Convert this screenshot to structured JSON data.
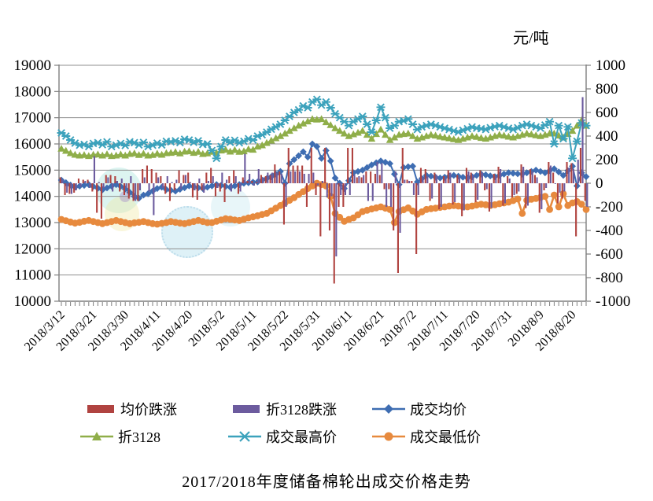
{
  "chart_data": {
    "type": "combo-line-bar",
    "title": "2017/2018年度储备棉轮出成交价格走势",
    "unit_label": "元/吨",
    "grid": "horizontal",
    "legend_position": "bottom",
    "y_left": {
      "min": 10000,
      "max": 19000,
      "ticks": [
        19000,
        18000,
        17000,
        16000,
        15000,
        14000,
        13000,
        12000,
        11000,
        10000
      ]
    },
    "y_right": {
      "min": -1000,
      "max": 1000,
      "ticks": [
        1000,
        800,
        600,
        400,
        200,
        0,
        -200,
        -400,
        -600,
        -800,
        -1000
      ]
    },
    "x_tick_labels": [
      "2018/3/12",
      "2018/3/21",
      "2018/3/30",
      "2018/4/11",
      "2018/4/20",
      "2018/5/2",
      "2018/5/11",
      "2018/5/22",
      "2018/5/31",
      "2018/6/11",
      "2018/6/21",
      "2018/7/2",
      "2018/7/11",
      "2018/7/20",
      "2018/7/31",
      "2018/8/9",
      "2018/8/20"
    ],
    "points_per_tick": 7,
    "n_points": 116,
    "series": [
      {
        "name": "均价跌涨",
        "type": "bar",
        "axis": "right",
        "color": "#B04340",
        "values": [
          50,
          -100,
          -90,
          -80,
          40,
          30,
          30,
          -70,
          -250,
          -300,
          70,
          70,
          60,
          -70,
          -100,
          -130,
          -150,
          -150,
          120,
          150,
          120,
          90,
          60,
          -90,
          -150,
          -60,
          110,
          70,
          90,
          -120,
          -140,
          -60,
          90,
          130,
          -110,
          -70,
          -160,
          60,
          110,
          -90,
          50,
          20,
          20,
          10,
          70,
          60,
          70,
          160,
          100,
          -350,
          300,
          150,
          150,
          150,
          -200,
          300,
          -100,
          -450,
          300,
          -400,
          -850,
          -200,
          -200,
          300,
          300,
          50,
          50,
          100,
          100,
          80,
          70,
          -50,
          -50,
          -400,
          -760,
          300,
          30,
          20,
          -600,
          130,
          120,
          -150,
          90,
          -220,
          60,
          110,
          -180,
          70,
          -280,
          130,
          90,
          -160,
          110,
          -60,
          -240,
          80,
          140,
          -190,
          60,
          -120,
          -90,
          160,
          -210,
          120,
          70,
          -250,
          -60,
          180,
          90,
          -170,
          -130,
          180,
          170,
          -450,
          300,
          -150
        ]
      },
      {
        "name": "折3128跌涨",
        "type": "bar",
        "axis": "right",
        "color": "#6C5B9E",
        "values": [
          30,
          -80,
          -90,
          -60,
          -30,
          20,
          -40,
          230,
          10,
          -40,
          50,
          -70,
          20,
          40,
          -40,
          60,
          -150,
          -60,
          50,
          -70,
          -270,
          50,
          -40,
          60,
          10,
          30,
          -50,
          70,
          10,
          -60,
          40,
          -80,
          20,
          60,
          -40,
          90,
          30,
          -70,
          60,
          -70,
          250,
          80,
          -20,
          120,
          50,
          90,
          90,
          90,
          80,
          -200,
          100,
          100,
          100,
          80,
          80,
          90,
          -20,
          20,
          -120,
          -110,
          -620,
          -100,
          -100,
          -100,
          70,
          60,
          70,
          -150,
          -150,
          180,
          170,
          -200,
          -200,
          100,
          -420,
          30,
          20,
          -100,
          -100,
          50,
          60,
          -130,
          70,
          -200,
          40,
          90,
          -160,
          50,
          -230,
          100,
          70,
          -140,
          90,
          -50,
          -210,
          60,
          120,
          -170,
          40,
          -100,
          -70,
          140,
          -190,
          100,
          50,
          -220,
          -40,
          150,
          0,
          -80,
          -70,
          130,
          120,
          200,
          730,
          -200
        ]
      },
      {
        "name": "成交均价",
        "type": "line",
        "marker": "diamond",
        "axis": "left",
        "color": "#3E6DB2",
        "values": [
          14620,
          14520,
          14430,
          14350,
          14390,
          14420,
          14450,
          14380,
          14310,
          14250,
          14320,
          14390,
          14450,
          14380,
          14280,
          14150,
          14000,
          13930,
          14050,
          14100,
          14200,
          14300,
          14350,
          14260,
          14230,
          14200,
          14270,
          14330,
          14400,
          14370,
          14330,
          14300,
          14350,
          14400,
          14450,
          14420,
          14380,
          14350,
          14400,
          14450,
          14500,
          14520,
          14540,
          14550,
          14620,
          14680,
          14750,
          14850,
          14950,
          14500,
          15250,
          15400,
          15550,
          15700,
          15500,
          16000,
          15900,
          15450,
          15750,
          15350,
          14700,
          14500,
          14300,
          14600,
          14900,
          14950,
          15000,
          15100,
          15200,
          15280,
          15350,
          15300,
          15250,
          14850,
          14450,
          15100,
          15130,
          15150,
          14550,
          14680,
          14800,
          14770,
          14730,
          14700,
          14730,
          14770,
          14800,
          14770,
          14730,
          14700,
          14750,
          14800,
          14850,
          14820,
          14780,
          14750,
          14800,
          14850,
          14900,
          14880,
          14860,
          14850,
          14900,
          14950,
          15000,
          14950,
          14900,
          14980,
          15050,
          14930,
          14800,
          14980,
          15150,
          14400,
          14900,
          14750
        ]
      },
      {
        "name": "折3128",
        "type": "line",
        "marker": "triangle",
        "axis": "left",
        "color": "#8FAE49",
        "values": [
          15820,
          15740,
          15650,
          15590,
          15560,
          15580,
          15540,
          15590,
          15600,
          15560,
          15610,
          15540,
          15560,
          15600,
          15560,
          15620,
          15640,
          15580,
          15630,
          15560,
          15580,
          15630,
          15590,
          15650,
          15660,
          15690,
          15640,
          15710,
          15720,
          15660,
          15700,
          15620,
          15640,
          15700,
          15660,
          15750,
          15780,
          15710,
          15770,
          15700,
          15720,
          15800,
          15780,
          15900,
          15950,
          16040,
          16130,
          16220,
          16300,
          16400,
          16500,
          16600,
          16700,
          16780,
          16860,
          16950,
          16930,
          16950,
          16830,
          16720,
          16600,
          16500,
          16400,
          16300,
          16370,
          16430,
          16500,
          16350,
          16200,
          16380,
          16550,
          16350,
          16150,
          16250,
          16350,
          16380,
          16400,
          16300,
          16200,
          16250,
          16300,
          16350,
          16320,
          16280,
          16250,
          16220,
          16180,
          16150,
          16200,
          16250,
          16300,
          16270,
          16230,
          16200,
          16250,
          16300,
          16350,
          16320,
          16280,
          16250,
          16300,
          16350,
          16400,
          16370,
          16330,
          16300,
          16350,
          16400,
          16400,
          16320,
          16250,
          16380,
          16500,
          16700,
          16900,
          16700
        ]
      },
      {
        "name": "成交最高价",
        "type": "line",
        "marker": "x",
        "axis": "left",
        "color": "#3CA2BC",
        "values": [
          16420,
          16300,
          16150,
          16030,
          15950,
          15980,
          15900,
          16020,
          16050,
          15970,
          16080,
          15900,
          15950,
          16020,
          15940,
          16080,
          16050,
          15960,
          16060,
          15900,
          15950,
          16030,
          15960,
          16100,
          16080,
          16120,
          16050,
          16180,
          16150,
          16060,
          16120,
          15980,
          16000,
          15750,
          15450,
          15900,
          16150,
          16060,
          16140,
          16040,
          16100,
          16200,
          16150,
          16300,
          16350,
          16450,
          16560,
          16650,
          16750,
          16900,
          17050,
          17200,
          17300,
          17450,
          17380,
          17600,
          17700,
          17480,
          17600,
          17380,
          17150,
          17000,
          16850,
          16700,
          16850,
          16950,
          17050,
          16750,
          16450,
          16900,
          17400,
          17000,
          16600,
          16700,
          16850,
          16880,
          16950,
          16750,
          16550,
          16650,
          16700,
          16750,
          16700,
          16650,
          16600,
          16550,
          16500,
          16450,
          16520,
          16580,
          16650,
          16600,
          16580,
          16550,
          16620,
          16660,
          16700,
          16650,
          16600,
          16550,
          16620,
          16700,
          16750,
          16700,
          16650,
          16600,
          16720,
          16850,
          16000,
          16700,
          16200,
          16650,
          15450,
          16100,
          16800,
          16700
        ]
      },
      {
        "name": "成交最低价",
        "type": "line",
        "marker": "circle",
        "axis": "left",
        "color": "#E78A3E",
        "values": [
          13120,
          13070,
          13020,
          12980,
          13010,
          13050,
          13080,
          13040,
          13000,
          12960,
          13000,
          13040,
          13080,
          13040,
          13000,
          12960,
          12990,
          13010,
          13040,
          13000,
          12960,
          12940,
          12970,
          13000,
          13040,
          13010,
          12980,
          12960,
          13000,
          13040,
          13080,
          13040,
          13000,
          13000,
          13050,
          13100,
          13150,
          13130,
          13100,
          13080,
          13130,
          13180,
          13220,
          13260,
          13310,
          13350,
          13450,
          13550,
          13650,
          13750,
          13850,
          13950,
          14070,
          14180,
          14300,
          14400,
          14500,
          14450,
          14400,
          14000,
          13350,
          13200,
          13050,
          13120,
          13180,
          13300,
          13420,
          13470,
          13520,
          13560,
          13600,
          13550,
          13500,
          13000,
          13420,
          13490,
          13560,
          13440,
          13320,
          13410,
          13500,
          13530,
          13550,
          13580,
          13600,
          13630,
          13650,
          13630,
          13600,
          13600,
          13630,
          13670,
          13700,
          13680,
          13650,
          13680,
          13720,
          13750,
          13780,
          13840,
          13900,
          13350,
          13850,
          13890,
          13920,
          13960,
          14000,
          13500,
          14050,
          13600,
          14100,
          13650,
          13750,
          13800,
          13700,
          13500
        ]
      }
    ]
  }
}
